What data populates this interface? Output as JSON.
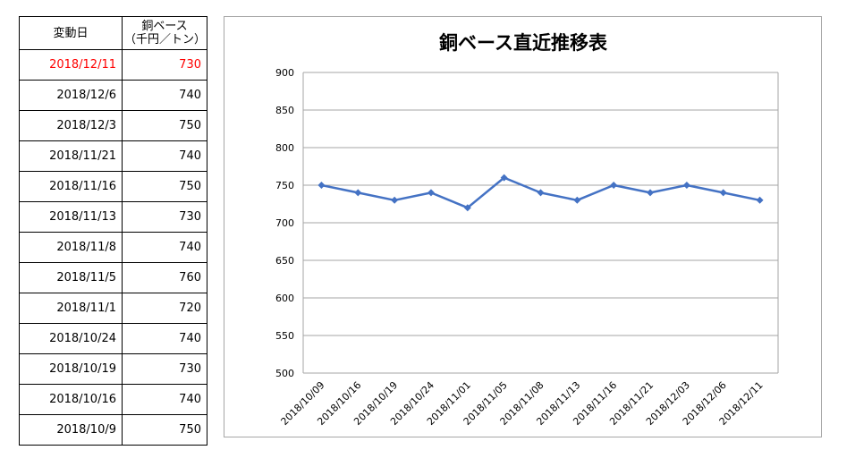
{
  "table": {
    "header": {
      "date": "変動日",
      "price_line1": "銅ベース",
      "price_line2": "（千円／トン）"
    },
    "rows": [
      {
        "date": "2018/12/11",
        "value": "730",
        "highlight": true
      },
      {
        "date": "2018/12/6",
        "value": "740"
      },
      {
        "date": "2018/12/3",
        "value": "750"
      },
      {
        "date": "2018/11/21",
        "value": "740"
      },
      {
        "date": "2018/11/16",
        "value": "750"
      },
      {
        "date": "2018/11/13",
        "value": "730"
      },
      {
        "date": "2018/11/8",
        "value": "740"
      },
      {
        "date": "2018/11/5",
        "value": "760"
      },
      {
        "date": "2018/11/1",
        "value": "720"
      },
      {
        "date": "2018/10/24",
        "value": "740"
      },
      {
        "date": "2018/10/19",
        "value": "730"
      },
      {
        "date": "2018/10/16",
        "value": "740"
      },
      {
        "date": "2018/10/9",
        "value": "750"
      }
    ],
    "highlight_color": "#ff0000"
  },
  "chart_data": {
    "type": "line",
    "title": "銅ベース直近推移表",
    "categories": [
      "2018/10/09",
      "2018/10/16",
      "2018/10/19",
      "2018/10/24",
      "2018/11/01",
      "2018/11/05",
      "2018/11/08",
      "2018/11/13",
      "2018/11/16",
      "2018/11/21",
      "2018/12/03",
      "2018/12/06",
      "2018/12/11"
    ],
    "series": [
      {
        "values": [
          750,
          740,
          730,
          740,
          720,
          760,
          740,
          730,
          750,
          740,
          750,
          740,
          730
        ],
        "color": "#4472c4",
        "marker": "diamond"
      }
    ],
    "ylim": [
      500,
      900
    ],
    "yticks": [
      500,
      550,
      600,
      650,
      700,
      750,
      800,
      850,
      900
    ],
    "xlabel": "",
    "ylabel": "",
    "grid": true,
    "legend": false
  }
}
